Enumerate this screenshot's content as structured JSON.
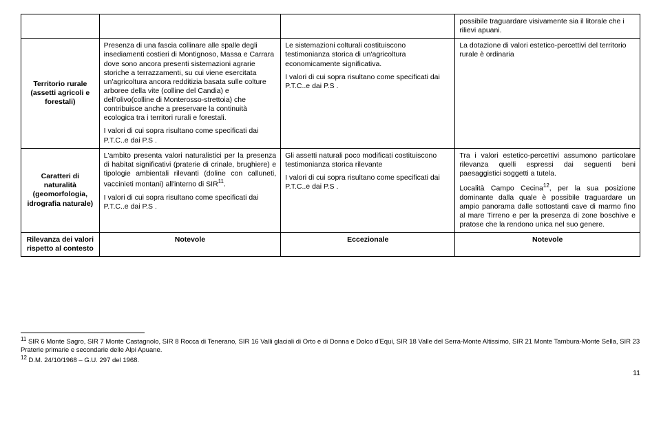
{
  "row0": {
    "col4": "possibile traguardare visivamente sia il litorale che i rilievi apuani."
  },
  "row1": {
    "head": "Territorio rurale (assetti agricoli e forestali)",
    "col2a": "Presenza di una fascia collinare alle spalle degli insediamenti costieri di Montignoso, Massa e Carrara dove sono ancora presenti sistemazioni agrarie storiche a terrazzamenti, su cui viene esercitata un'agricoltura ancora redditizia basata sulle colture arboree della vite (colline del Candia) e dell'olivo(colline di Monterosso-strettoia) che contribuisce anche a preservare la continuità ecologica tra i territori rurali e forestali.",
    "col2b": "I valori di cui sopra risultano come specificati dai P.T.C..e dai P.S .",
    "col3a": "Le sistemazioni colturali costituiscono testimonianza storica di un'agricoltura economicamente significativa.",
    "col3b": "I valori di cui sopra risultano come specificati dai P.T.C..e dai P.S .",
    "col4": "La dotazione di valori estetico-percettivi del territorio rurale è ordinaria"
  },
  "row2": {
    "head": "Caratteri di naturalità (geomorfologia, idrografia naturale)",
    "col2a_pre": "L'ambito presenta valori naturalistici per la presenza di habitat significativi (praterie di crinale, brughiere) e tipologie ambientali rilevanti (doline con calluneti, vaccinieti montani) all'interno di SIR",
    "col2a_sup": "11",
    "col2a_post": ".",
    "col2b": "I valori di cui sopra risultano come specificati dai P.T.C..e dai P.S .",
    "col3a": "Gli assetti naturali poco modificati costituiscono testimonianza storica rilevante",
    "col3b": "I valori di cui sopra risultano come specificati dai P.T.C..e dai P.S .",
    "col4a": "Tra i valori estetico-percettivi assumono particolare rilevanza quelli espressi dai seguenti beni paesaggistici soggetti a tutela.",
    "col4b_pre": "Località Campo Cecina",
    "col4b_sup": "12",
    "col4b_post": ", per la sua posizione dominante dalla quale è possibile traguardare un ampio panorama dalle sottostanti cave di marmo fino al mare Tirreno e per la presenza di zone boschive e pratose che la rendono unica nel suo genere."
  },
  "row3": {
    "head": "Rilevanza dei valori rispetto al contesto",
    "col2": "Notevole",
    "col3": "Eccezionale",
    "col4": "Notevole"
  },
  "footnotes": {
    "fn11_num": "11",
    "fn11": " SIR 6 Monte Sagro, SIR 7 Monte Castagnolo, SIR 8 Rocca di Tenerano, SIR 16 Valli glaciali di Orto e di Donna e Dolco d'Equi, SIR 18 Valle del Serra-Monte Altissimo, SIR 21 Monte Tambura-Monte Sella, SIR 23 Praterie primarie e secondarie delle Alpi Apuane.",
    "fn12_num": "12",
    "fn12": " D.M. 24/10/1968 – G.U. 297 del 1968."
  },
  "page": "11"
}
